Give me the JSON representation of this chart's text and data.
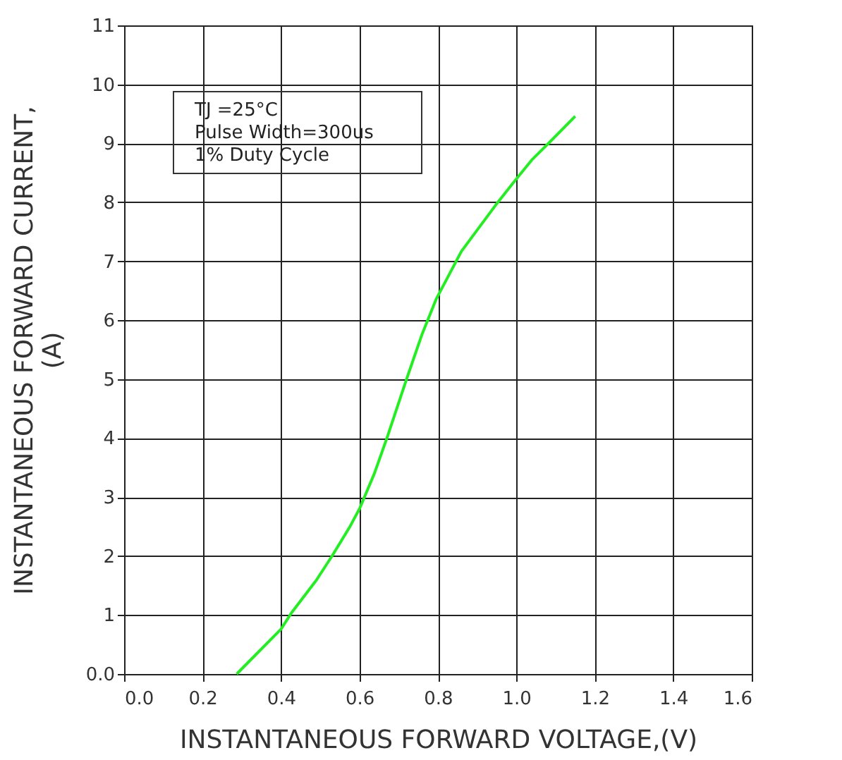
{
  "chart_data": {
    "type": "line",
    "xlabel": "INSTANTANEOUS FORWARD VOLTAGE,(V)",
    "ylabel": "INSTANTANEOUS FORWARD CURRENT, (A)",
    "annotations": [
      "TJ =25°C",
      "Pulse Width=300us",
      "1% Duty Cycle"
    ],
    "x": [
      0.287,
      0.4,
      0.427,
      0.49,
      0.53,
      0.574,
      0.6,
      0.638,
      0.67,
      0.72,
      0.76,
      0.795,
      0.86,
      0.947,
      0.998,
      1.041,
      1.082,
      1.15
    ],
    "series": [
      {
        "color": "#22ee22",
        "values": [
          0,
          0.76,
          1.04,
          1.59,
          2.0,
          2.48,
          2.8,
          3.4,
          4.0,
          5.0,
          5.77,
          6.35,
          7.17,
          7.95,
          8.38,
          8.73,
          9.0,
          9.46
        ]
      }
    ],
    "xlim": [
      0,
      1.6
    ],
    "xticks": [
      {
        "value": 0,
        "label": "0.0"
      },
      0.2,
      0.4,
      0.6,
      0.8,
      {
        "value": 1,
        "label": "1.0"
      },
      1.2,
      1.4,
      1.6
    ],
    "ylim": [
      0,
      11
    ],
    "yticks": [
      {
        "value": 0,
        "label": "0.0"
      },
      1,
      2,
      3,
      4,
      5,
      6,
      7,
      8,
      9,
      10,
      11
    ],
    "grid": true,
    "marker": "none",
    "line_style": "solid"
  }
}
